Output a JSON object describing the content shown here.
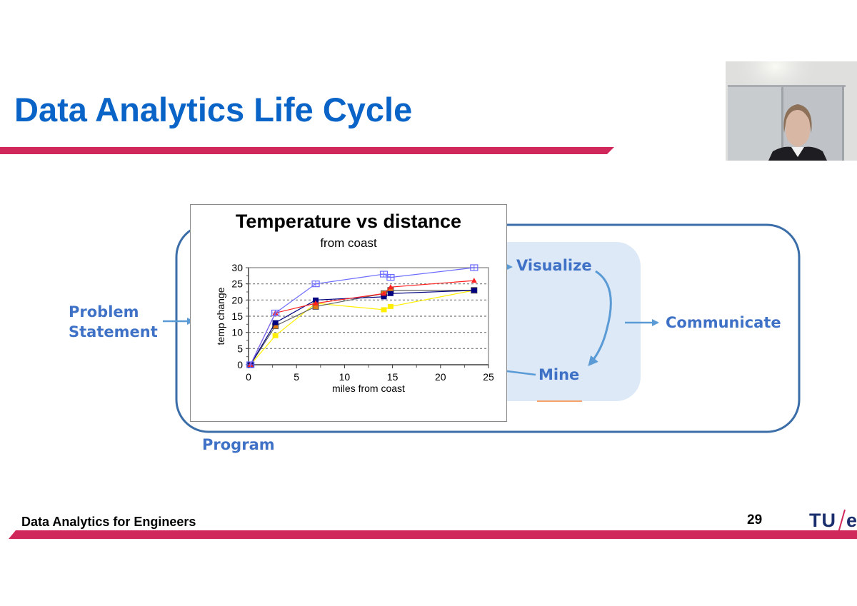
{
  "slide": {
    "title": "Data Analytics Life Cycle",
    "footer_text": "Data Analytics for Engineers",
    "page_number": "29",
    "logo": {
      "left": "TU",
      "right": "e"
    },
    "colors": {
      "title_blue": "#0a64c8",
      "accent_bar": "#d0285a",
      "diagram_label": "#3f72c6",
      "diagram_border": "#3b6ea8",
      "panel_fill": "#dde9f7",
      "arrow": "#5b9bd5"
    }
  },
  "webcam": {
    "label": "presenter-video"
  },
  "diagram": {
    "problem_statement": [
      "Problem",
      "Statement"
    ],
    "visualize": "Visualize",
    "mine": "Mine",
    "communicate": "Communicate",
    "program": "Program"
  },
  "chart_data": {
    "type": "line",
    "title": "Temperature vs distance",
    "subtitle": "from coast",
    "xlabel": "miles from coast",
    "ylabel": "temp change",
    "xlim": [
      0,
      25
    ],
    "ylim": [
      0,
      30
    ],
    "xticks": [
      0,
      5,
      10,
      15,
      20,
      25
    ],
    "yticks": [
      0,
      5,
      10,
      15,
      20,
      25,
      30
    ],
    "grid": "horizontal dashed",
    "legend": "none",
    "x": [
      0.2,
      2.8,
      7.0,
      14.1,
      14.8,
      23.5
    ],
    "series": [
      {
        "name": "series-blue-open-square",
        "color": "#6b6bff",
        "marker": "open-square-cross",
        "values": [
          0,
          16,
          25,
          28,
          27,
          30
        ]
      },
      {
        "name": "series-red-triangle",
        "color": "#ff2020",
        "marker": "triangle",
        "values": [
          0,
          16,
          19,
          22,
          24,
          26
        ]
      },
      {
        "name": "series-navy-square",
        "color": "#000080",
        "marker": "square",
        "values": [
          0,
          13,
          20,
          21,
          22,
          23
        ]
      },
      {
        "name": "series-gray-orange",
        "color": "#606060",
        "marker": "square-orange",
        "values": [
          0,
          12,
          18,
          22,
          23,
          23
        ]
      },
      {
        "name": "series-yellow",
        "color": "#ffee00",
        "marker": "square",
        "values": [
          0,
          9,
          19,
          17,
          18,
          23
        ]
      }
    ]
  }
}
